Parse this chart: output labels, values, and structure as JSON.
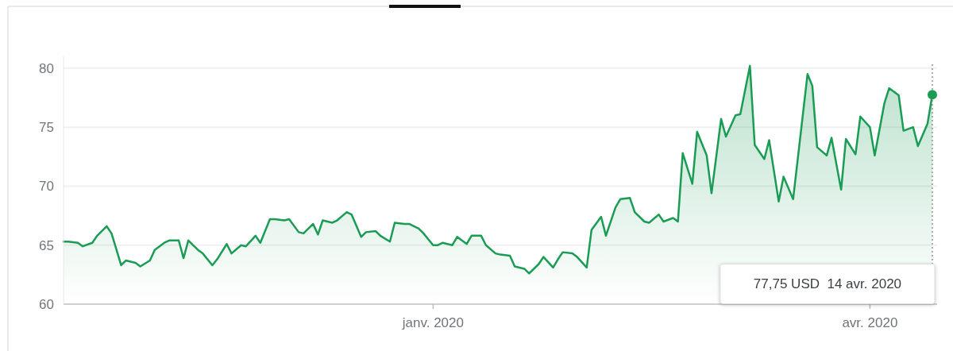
{
  "chart_data": {
    "type": "area",
    "x": [
      "2019-10-16",
      "2019-10-17",
      "2019-10-19",
      "2019-10-20",
      "2019-10-22",
      "2019-10-23",
      "2019-10-25",
      "2019-10-26",
      "2019-10-28",
      "2019-10-29",
      "2019-10-31",
      "2019-11-01",
      "2019-11-03",
      "2019-11-04",
      "2019-11-06",
      "2019-11-07",
      "2019-11-09",
      "2019-11-10",
      "2019-11-11",
      "2019-11-13",
      "2019-11-14",
      "2019-11-16",
      "2019-11-17",
      "2019-11-19",
      "2019-11-20",
      "2019-11-22",
      "2019-11-23",
      "2019-11-25",
      "2019-11-26",
      "2019-11-28",
      "2019-11-29",
      "2019-12-01",
      "2019-12-02",
      "2019-12-04",
      "2019-12-05",
      "2019-12-07",
      "2019-12-08",
      "2019-12-09",
      "2019-12-11",
      "2019-12-12",
      "2019-12-14",
      "2019-12-15",
      "2019-12-17",
      "2019-12-18",
      "2019-12-20",
      "2019-12-21",
      "2019-12-23",
      "2019-12-24",
      "2019-12-26",
      "2019-12-27",
      "2019-12-29",
      "2019-12-30",
      "2020-01-01",
      "2020-01-02",
      "2020-01-03",
      "2020-01-05",
      "2020-01-06",
      "2020-01-08",
      "2020-01-09",
      "2020-01-11",
      "2020-01-12",
      "2020-01-14",
      "2020-01-15",
      "2020-01-17",
      "2020-01-18",
      "2020-01-20",
      "2020-01-21",
      "2020-01-23",
      "2020-01-24",
      "2020-01-26",
      "2020-01-27",
      "2020-01-28",
      "2020-01-30",
      "2020-01-31",
      "2020-02-02",
      "2020-02-03",
      "2020-02-05",
      "2020-02-06",
      "2020-02-08",
      "2020-02-09",
      "2020-02-11",
      "2020-02-12",
      "2020-02-14",
      "2020-02-15",
      "2020-02-17",
      "2020-02-18",
      "2020-02-20",
      "2020-02-21",
      "2020-02-22",
      "2020-02-24",
      "2020-02-25",
      "2020-02-27",
      "2020-02-28",
      "2020-03-01",
      "2020-03-02",
      "2020-03-04",
      "2020-03-05",
      "2020-03-07",
      "2020-03-08",
      "2020-03-10",
      "2020-03-11",
      "2020-03-13",
      "2020-03-14",
      "2020-03-16",
      "2020-03-19",
      "2020-03-20",
      "2020-03-21",
      "2020-03-23",
      "2020-03-24",
      "2020-03-26",
      "2020-03-27",
      "2020-03-29",
      "2020-03-30",
      "2020-04-01",
      "2020-04-02",
      "2020-04-04",
      "2020-04-05",
      "2020-04-07",
      "2020-04-08",
      "2020-04-10",
      "2020-04-11",
      "2020-04-13",
      "2020-04-14"
    ],
    "series": [
      {
        "color": "#1a9c55",
        "values": [
          65.3,
          65.3,
          65.2,
          64.9,
          65.2,
          65.8,
          66.6,
          66.0,
          63.3,
          63.7,
          63.5,
          63.2,
          63.7,
          64.6,
          65.2,
          65.4,
          65.4,
          63.9,
          65.4,
          64.6,
          64.3,
          63.3,
          63.8,
          65.1,
          64.3,
          65.0,
          64.9,
          65.8,
          65.2,
          67.2,
          67.2,
          67.1,
          67.2,
          66.1,
          66.0,
          66.8,
          65.9,
          67.1,
          66.9,
          67.1,
          67.8,
          67.6,
          65.7,
          66.1,
          66.2,
          65.8,
          65.3,
          66.9,
          66.8,
          66.8,
          66.4,
          66.0,
          65.0,
          65.0,
          65.2,
          65.0,
          65.7,
          65.1,
          65.8,
          65.8,
          65.0,
          64.3,
          64.2,
          64.1,
          63.2,
          63.0,
          62.6,
          63.4,
          64.0,
          63.1,
          63.8,
          64.4,
          64.3,
          64.0,
          63.1,
          66.3,
          67.4,
          65.8,
          68.2,
          68.9,
          69.0,
          67.8,
          67.0,
          66.9,
          67.6,
          67.0,
          67.3,
          67.0,
          72.8,
          70.2,
          74.6,
          72.6,
          69.4,
          75.7,
          74.2,
          76.0,
          76.1,
          80.2,
          73.5,
          72.3,
          73.9,
          68.7,
          70.8,
          68.9,
          79.5,
          78.5,
          73.3,
          72.6,
          74.1,
          69.7,
          74.0,
          72.7,
          75.9,
          75.0,
          72.6,
          77.0,
          78.3,
          77.7,
          74.7,
          75.0,
          73.4,
          75.3,
          77.75
        ]
      }
    ],
    "xlim": [
      "2019-10-16",
      "2020-04-15"
    ],
    "xticks": [
      {
        "value": "2020-01-01",
        "label": "janv. 2020"
      },
      {
        "value": "2020-04-01",
        "label": "avr. 2020"
      }
    ],
    "ylim": [
      60,
      81
    ],
    "yticks": [
      60,
      65,
      70,
      75,
      80
    ],
    "grid": "y",
    "ref_lines": [
      {
        "axis": "x",
        "value": "2020-04-14",
        "line_style": "dotted",
        "color": "#777777"
      }
    ],
    "annotations": [
      "77,75 USD  14 avr. 2020"
    ]
  }
}
